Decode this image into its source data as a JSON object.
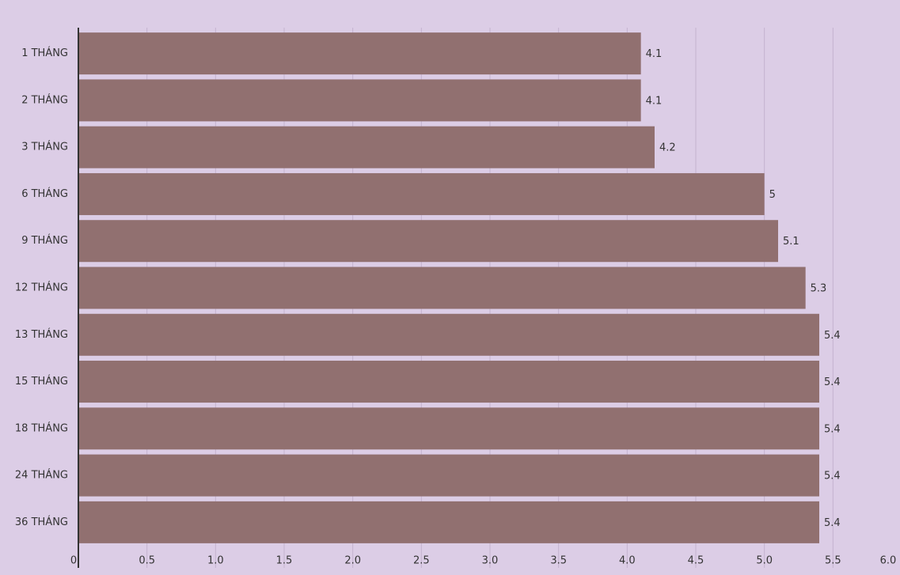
{
  "chart_data": {
    "type": "hbar",
    "categories": [
      "1 THÁNG",
      "2 THÁNG",
      "3 THÁNG",
      "6 THÁNG",
      "9 THÁNG",
      "12 THÁNG",
      "13 THÁNG",
      "15 THÁNG",
      "18 THÁNG",
      "24 THÁNG",
      "36 THÁNG"
    ],
    "values": [
      4.1,
      4.1,
      4.2,
      5,
      5.1,
      5.3,
      5.4,
      5.4,
      5.4,
      5.4,
      5.4
    ],
    "color": "#917070",
    "xlim": [
      0,
      6
    ],
    "xticks": [
      0,
      0.5,
      {
        "value": 1,
        "label": "1.0"
      },
      1.5,
      {
        "value": 2,
        "label": "2.0"
      },
      2.5,
      {
        "value": 3,
        "label": "3.0"
      },
      3.5,
      {
        "value": 4,
        "label": "4.0"
      },
      4.5,
      {
        "value": 5,
        "label": "5.0"
      },
      5.5,
      {
        "value": 6,
        "label": "6.0"
      }
    ],
    "grid": true
  }
}
